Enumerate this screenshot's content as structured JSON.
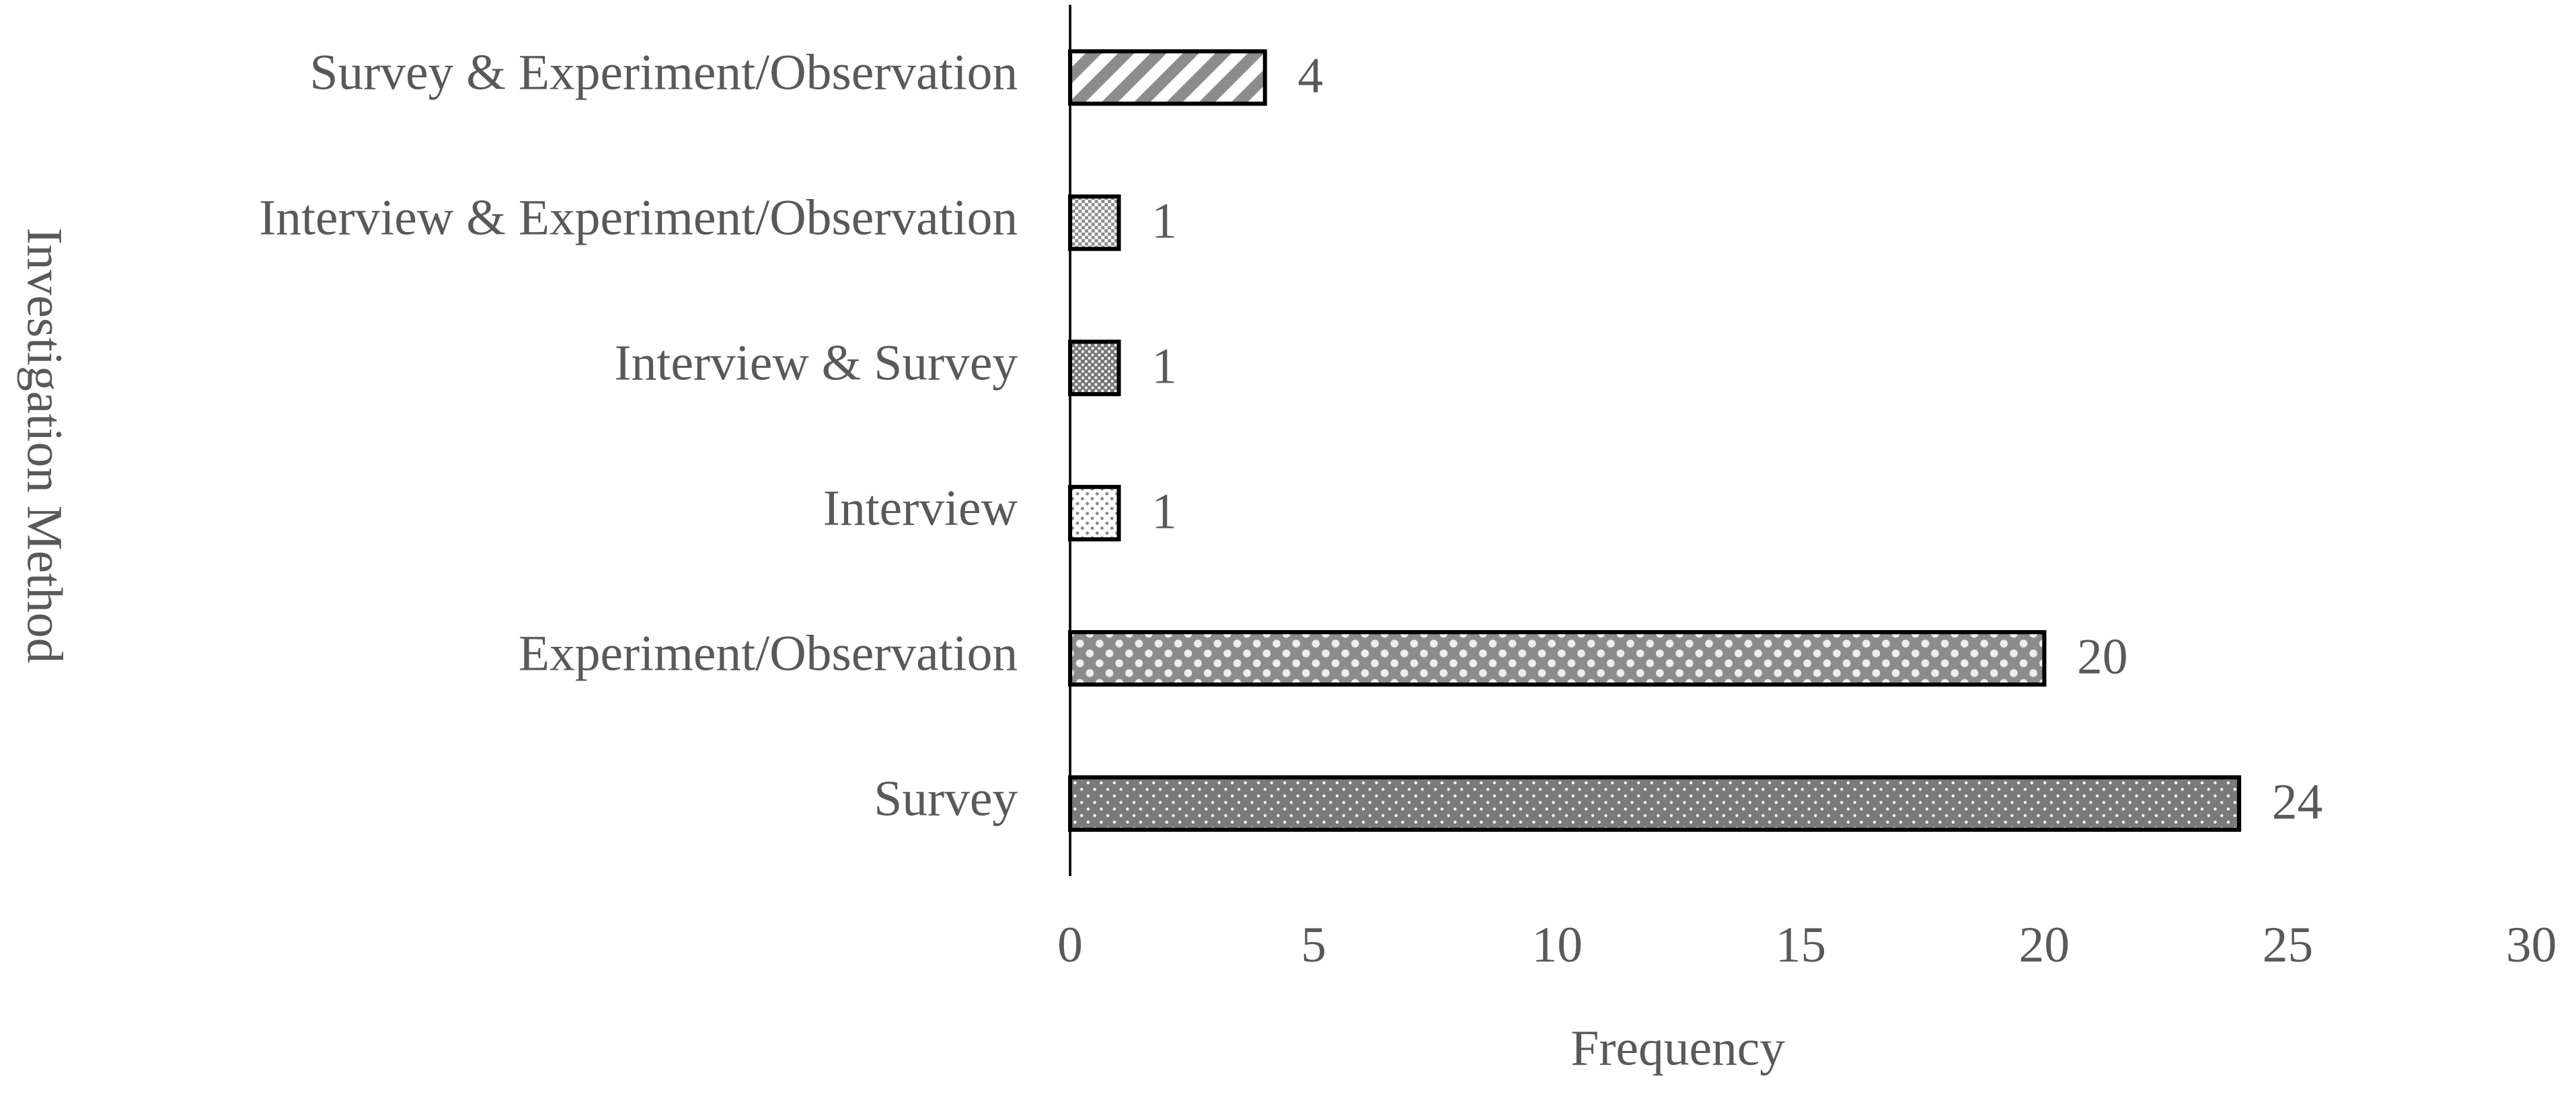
{
  "chart_data": {
    "type": "bar",
    "orientation": "horizontal",
    "categories": [
      "Survey & Experiment/Observation",
      "Interview & Experiment/Observation",
      "Interview & Survey",
      "Interview",
      "Experiment/Observation",
      "Survey"
    ],
    "values": [
      4,
      1,
      1,
      1,
      20,
      24
    ],
    "xlim": [
      0,
      30
    ],
    "xticks": [
      0,
      5,
      10,
      15,
      20,
      25,
      30
    ],
    "x_label": "Frequency",
    "y_label": "Investigation Method",
    "grid": false
  }
}
